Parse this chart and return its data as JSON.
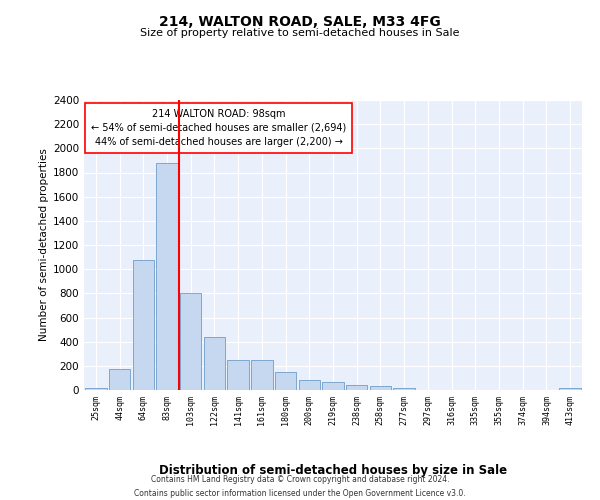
{
  "title1": "214, WALTON ROAD, SALE, M33 4FG",
  "title2": "Size of property relative to semi-detached houses in Sale",
  "xlabel": "Distribution of semi-detached houses by size in Sale",
  "ylabel": "Number of semi-detached properties",
  "categories": [
    "25sqm",
    "44sqm",
    "64sqm",
    "83sqm",
    "103sqm",
    "122sqm",
    "141sqm",
    "161sqm",
    "180sqm",
    "200sqm",
    "219sqm",
    "238sqm",
    "258sqm",
    "277sqm",
    "297sqm",
    "316sqm",
    "335sqm",
    "355sqm",
    "374sqm",
    "394sqm",
    "413sqm"
  ],
  "values": [
    20,
    170,
    1080,
    1880,
    800,
    435,
    250,
    250,
    150,
    80,
    65,
    45,
    35,
    20,
    0,
    0,
    0,
    0,
    0,
    0,
    20
  ],
  "bar_color": "#c5d8f0",
  "bar_edge_color": "#5a8fc2",
  "vline_index": 3.5,
  "vline_color": "red",
  "annotation_text": "214 WALTON ROAD: 98sqm\n← 54% of semi-detached houses are smaller (2,694)\n44% of semi-detached houses are larger (2,200) →",
  "annotation_box_color": "white",
  "annotation_box_edge_color": "red",
  "ylim": [
    0,
    2400
  ],
  "yticks": [
    0,
    200,
    400,
    600,
    800,
    1000,
    1200,
    1400,
    1600,
    1800,
    2000,
    2200,
    2400
  ],
  "background_color": "#eaf0fb",
  "grid_color": "white",
  "footer1": "Contains HM Land Registry data © Crown copyright and database right 2024.",
  "footer2": "Contains public sector information licensed under the Open Government Licence v3.0."
}
